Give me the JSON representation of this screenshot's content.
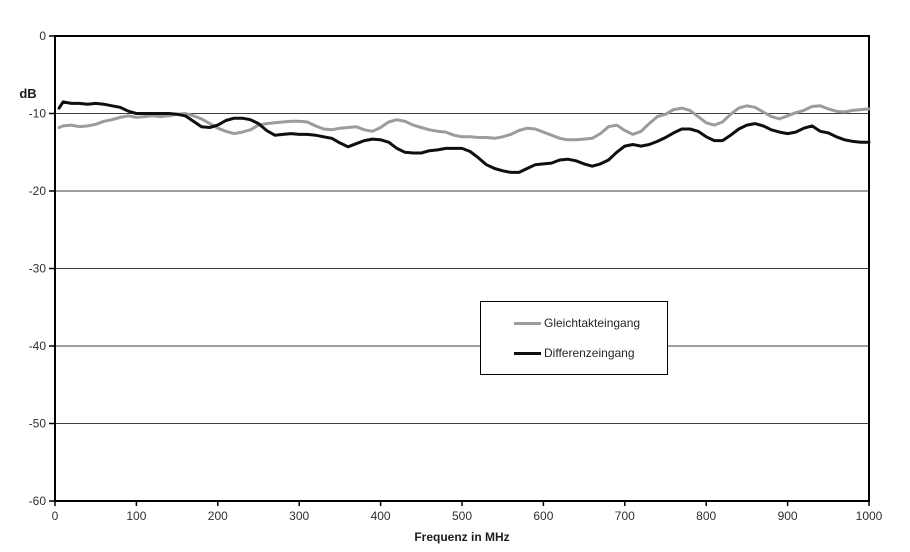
{
  "page": {
    "background": "#ffffff"
  },
  "chart_data": {
    "type": "line",
    "title": "",
    "xlabel": "Frequenz in MHz",
    "ylabel": "dB",
    "xlim": [
      0,
      1000
    ],
    "ylim": [
      -60,
      0
    ],
    "x_ticks": [
      0,
      100,
      200,
      300,
      400,
      500,
      600,
      700,
      800,
      900,
      1000
    ],
    "y_ticks": [
      0,
      -10,
      -20,
      -30,
      -40,
      -50,
      -60
    ],
    "grid": "horizontal",
    "legend_position": "inside-center-right",
    "axis_color": "#000000",
    "grid_color": "#3f3f3f",
    "tick_color": "#303030",
    "x": [
      5,
      10,
      20,
      30,
      40,
      50,
      60,
      70,
      80,
      90,
      100,
      110,
      120,
      130,
      140,
      150,
      160,
      170,
      180,
      190,
      200,
      210,
      220,
      230,
      240,
      250,
      260,
      270,
      280,
      290,
      300,
      310,
      320,
      330,
      340,
      350,
      360,
      370,
      380,
      390,
      400,
      410,
      420,
      430,
      440,
      450,
      460,
      470,
      480,
      490,
      500,
      510,
      520,
      530,
      540,
      550,
      560,
      570,
      580,
      590,
      600,
      610,
      620,
      630,
      640,
      650,
      660,
      670,
      680,
      690,
      700,
      710,
      720,
      730,
      740,
      750,
      760,
      770,
      780,
      790,
      800,
      810,
      820,
      830,
      840,
      850,
      860,
      870,
      880,
      890,
      900,
      910,
      920,
      930,
      940,
      950,
      960,
      970,
      980,
      990,
      1000
    ],
    "series": [
      {
        "name": "Gleichtakteingang",
        "color": "#9c9c9c",
        "width": 3,
        "values": [
          -11.8,
          -11.6,
          -11.5,
          -11.7,
          -11.6,
          -11.4,
          -11.0,
          -10.8,
          -10.5,
          -10.3,
          -10.5,
          -10.4,
          -10.3,
          -10.4,
          -10.3,
          -10.1,
          -10.0,
          -10.3,
          -10.7,
          -11.3,
          -11.9,
          -12.3,
          -12.6,
          -12.4,
          -12.1,
          -11.5,
          -11.3,
          -11.2,
          -11.1,
          -11.0,
          -11.0,
          -11.1,
          -11.6,
          -12.0,
          -12.1,
          -11.9,
          -11.8,
          -11.7,
          -12.1,
          -12.3,
          -11.8,
          -11.1,
          -10.8,
          -11.0,
          -11.5,
          -11.8,
          -12.1,
          -12.3,
          -12.4,
          -12.8,
          -13.0,
          -13.0,
          -13.1,
          -13.1,
          -13.2,
          -13.0,
          -12.7,
          -12.2,
          -11.9,
          -12.0,
          -12.4,
          -12.8,
          -13.2,
          -13.4,
          -13.4,
          -13.3,
          -13.2,
          -12.6,
          -11.7,
          -11.5,
          -12.2,
          -12.7,
          -12.3,
          -11.3,
          -10.4,
          -10.1,
          -9.5,
          -9.3,
          -9.6,
          -10.4,
          -11.2,
          -11.5,
          -11.1,
          -10.1,
          -9.3,
          -9.0,
          -9.2,
          -9.8,
          -10.4,
          -10.7,
          -10.3,
          -9.9,
          -9.6,
          -9.1,
          -9.0,
          -9.4,
          -9.7,
          -9.8,
          -9.6,
          -9.5,
          -9.4
        ]
      },
      {
        "name": "Differenzeingang",
        "color": "#0f0f0f",
        "width": 3,
        "values": [
          -9.3,
          -8.5,
          -8.7,
          -8.7,
          -8.8,
          -8.7,
          -8.8,
          -9.0,
          -9.2,
          -9.7,
          -10.0,
          -10.0,
          -10.0,
          -10.0,
          -10.0,
          -10.1,
          -10.3,
          -11.0,
          -11.7,
          -11.8,
          -11.5,
          -10.9,
          -10.6,
          -10.6,
          -10.8,
          -11.3,
          -12.2,
          -12.8,
          -12.7,
          -12.6,
          -12.7,
          -12.7,
          -12.8,
          -13.0,
          -13.2,
          -13.8,
          -14.3,
          -13.9,
          -13.5,
          -13.3,
          -13.4,
          -13.7,
          -14.5,
          -15.0,
          -15.1,
          -15.1,
          -14.8,
          -14.7,
          -14.5,
          -14.5,
          -14.5,
          -14.9,
          -15.7,
          -16.6,
          -17.1,
          -17.4,
          -17.6,
          -17.6,
          -17.1,
          -16.6,
          -16.5,
          -16.4,
          -16.0,
          -15.9,
          -16.1,
          -16.5,
          -16.8,
          -16.5,
          -16.0,
          -15.0,
          -14.2,
          -14.0,
          -14.2,
          -14.0,
          -13.6,
          -13.1,
          -12.5,
          -12.0,
          -12.0,
          -12.3,
          -13.0,
          -13.5,
          -13.5,
          -12.8,
          -12.0,
          -11.5,
          -11.3,
          -11.6,
          -12.1,
          -12.4,
          -12.6,
          -12.4,
          -11.9,
          -11.6,
          -12.3,
          -12.5,
          -13.0,
          -13.4,
          -13.6,
          -13.7,
          -13.7
        ]
      }
    ]
  }
}
